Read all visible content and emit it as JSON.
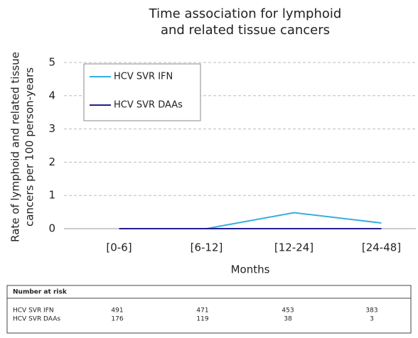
{
  "chart_data": {
    "type": "line",
    "title": [
      "Time association for lymphoid",
      "and related tissue cancers"
    ],
    "y_label": [
      "Rate of lymphoid and related tissue",
      "cancers per 100 person-years"
    ],
    "x_label": "Months",
    "categories": [
      "[0-6]",
      "[6-12]",
      "[12-24]",
      "[24-48]"
    ],
    "series": [
      {
        "name": "HCV SVR IFN",
        "color": "#35aee0",
        "values": [
          0,
          0,
          0.48,
          0.17
        ]
      },
      {
        "name": "HCV SVR DAAs",
        "color": "#231d8c",
        "values": [
          0,
          0,
          0,
          0
        ]
      }
    ],
    "ylim": [
      0,
      5
    ],
    "yticks": [
      0,
      1,
      2,
      3,
      4,
      5
    ],
    "grid": true,
    "legend": "upper left"
  },
  "number_at_risk": {
    "header": "Number at risk",
    "rows": [
      [
        "HCV SVR IFN",
        "491",
        "471",
        "453",
        "383"
      ],
      [
        "HCV SVR DAAs",
        "176",
        "119",
        "38",
        "3"
      ]
    ]
  }
}
